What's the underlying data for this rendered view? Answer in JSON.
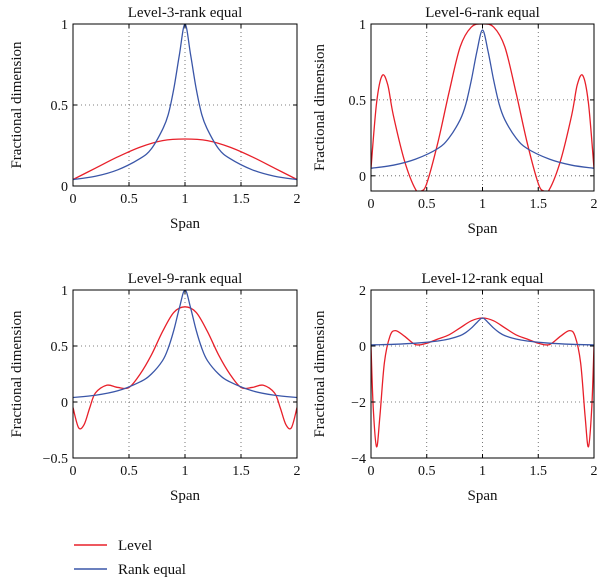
{
  "colors": {
    "level": "#e8202a",
    "rank": "#3a56a8"
  },
  "legend": [
    {
      "name": "Level",
      "color": "#e8202a"
    },
    {
      "name": "Rank equal",
      "color": "#3a56a8"
    }
  ],
  "chart_data": [
    {
      "type": "line",
      "title": "Level-3-rank equal",
      "xlabel": "Span",
      "ylabel": "Fractional dimension",
      "xlim": [
        0,
        2
      ],
      "ylim": [
        0,
        1
      ],
      "xticks": [
        "0",
        "0.5",
        "1",
        "1.5",
        "2"
      ],
      "xtick_values": [
        0,
        0.5,
        1,
        1.5,
        2
      ],
      "yticks": [
        "0",
        "0.5",
        "1"
      ],
      "ytick_values": [
        0,
        0.5,
        1
      ],
      "grid": true,
      "series": [
        {
          "name": "Level",
          "color": "#e8202a",
          "x": [
            0,
            0.2,
            0.4,
            0.6,
            0.8,
            1.0,
            1.2,
            1.4,
            1.6,
            1.8,
            2.0
          ],
          "y": [
            0.04,
            0.11,
            0.18,
            0.24,
            0.28,
            0.29,
            0.28,
            0.24,
            0.18,
            0.11,
            0.04
          ]
        },
        {
          "name": "Rank equal",
          "color": "#3a56a8",
          "x": [
            0,
            0.2,
            0.4,
            0.6,
            0.7,
            0.8,
            0.85,
            0.9,
            0.95,
            1.0,
            1.05,
            1.1,
            1.15,
            1.2,
            1.3,
            1.4,
            1.6,
            1.8,
            2.0
          ],
          "y": [
            0.04,
            0.06,
            0.1,
            0.17,
            0.23,
            0.35,
            0.44,
            0.6,
            0.81,
            1.0,
            0.81,
            0.6,
            0.44,
            0.35,
            0.23,
            0.17,
            0.1,
            0.06,
            0.04
          ]
        }
      ]
    },
    {
      "type": "line",
      "title": "Level-6-rank equal",
      "xlabel": "Span",
      "ylabel": "Fractional dimension",
      "xlim": [
        0,
        2
      ],
      "ylim": [
        -0.1,
        1
      ],
      "xticks": [
        "0",
        "0.5",
        "1",
        "1.5",
        "2"
      ],
      "xtick_values": [
        0,
        0.5,
        1,
        1.5,
        2
      ],
      "yticks": [
        "0",
        "0.5",
        "1"
      ],
      "ytick_values": [
        0,
        0.5,
        1
      ],
      "grid": true,
      "series": [
        {
          "name": "Level",
          "color": "#e8202a",
          "x": [
            0,
            0.05,
            0.1,
            0.15,
            0.2,
            0.3,
            0.4,
            0.45,
            0.5,
            0.6,
            0.7,
            0.8,
            0.9,
            1.0,
            1.1,
            1.2,
            1.3,
            1.4,
            1.5,
            1.55,
            1.6,
            1.7,
            1.8,
            1.85,
            1.9,
            1.95,
            2.0
          ],
          "y": [
            0.05,
            0.48,
            0.66,
            0.6,
            0.4,
            0.1,
            -0.09,
            -0.1,
            -0.05,
            0.22,
            0.55,
            0.85,
            0.98,
            1.0,
            0.98,
            0.85,
            0.55,
            0.22,
            -0.05,
            -0.1,
            -0.09,
            0.1,
            0.4,
            0.6,
            0.66,
            0.48,
            0.05
          ]
        },
        {
          "name": "Rank equal",
          "color": "#3a56a8",
          "x": [
            0,
            0.2,
            0.4,
            0.6,
            0.7,
            0.8,
            0.85,
            0.9,
            0.95,
            1.0,
            1.05,
            1.1,
            1.15,
            1.2,
            1.3,
            1.4,
            1.6,
            1.8,
            2.0
          ],
          "y": [
            0.05,
            0.07,
            0.11,
            0.18,
            0.25,
            0.37,
            0.47,
            0.63,
            0.82,
            0.96,
            0.82,
            0.63,
            0.47,
            0.37,
            0.25,
            0.18,
            0.11,
            0.07,
            0.05
          ]
        }
      ]
    },
    {
      "type": "line",
      "title": "Level-9-rank equal",
      "xlabel": "Span",
      "ylabel": "Fractional dimension",
      "xlim": [
        0,
        2
      ],
      "ylim": [
        -0.5,
        1
      ],
      "xticks": [
        "0",
        "0.5",
        "1",
        "1.5",
        "2"
      ],
      "xtick_values": [
        0,
        0.5,
        1,
        1.5,
        2
      ],
      "yticks": [
        "−0.5",
        "0",
        "0.5",
        "1"
      ],
      "ytick_values": [
        -0.5,
        0,
        0.5,
        1
      ],
      "grid": true,
      "series": [
        {
          "name": "Level",
          "color": "#e8202a",
          "x": [
            0,
            0.05,
            0.1,
            0.15,
            0.2,
            0.3,
            0.4,
            0.5,
            0.6,
            0.7,
            0.8,
            0.9,
            1.0,
            1.1,
            1.2,
            1.3,
            1.4,
            1.5,
            1.6,
            1.7,
            1.8,
            1.85,
            1.9,
            1.95,
            2.0
          ],
          "y": [
            -0.05,
            -0.23,
            -0.2,
            -0.05,
            0.08,
            0.15,
            0.13,
            0.13,
            0.25,
            0.42,
            0.63,
            0.8,
            0.85,
            0.8,
            0.63,
            0.42,
            0.25,
            0.13,
            0.13,
            0.15,
            0.08,
            -0.05,
            -0.2,
            -0.23,
            -0.05
          ]
        },
        {
          "name": "Rank equal",
          "color": "#3a56a8",
          "x": [
            0,
            0.2,
            0.4,
            0.6,
            0.7,
            0.8,
            0.85,
            0.9,
            0.95,
            1.0,
            1.05,
            1.1,
            1.15,
            1.2,
            1.3,
            1.4,
            1.6,
            1.8,
            2.0
          ],
          "y": [
            0.04,
            0.06,
            0.1,
            0.18,
            0.25,
            0.37,
            0.48,
            0.64,
            0.84,
            1.0,
            0.84,
            0.64,
            0.48,
            0.37,
            0.25,
            0.18,
            0.1,
            0.06,
            0.04
          ]
        }
      ]
    },
    {
      "type": "line",
      "title": "Level-12-rank equal",
      "xlabel": "Span",
      "ylabel": "Fractional dimension",
      "xlim": [
        0,
        2
      ],
      "ylim": [
        -4,
        2
      ],
      "xticks": [
        "0",
        "0.5",
        "1",
        "1.5",
        "2"
      ],
      "xtick_values": [
        0,
        0.5,
        1,
        1.5,
        2
      ],
      "yticks": [
        "−4",
        "−2",
        "0",
        "2"
      ],
      "ytick_values": [
        -4,
        -2,
        0,
        2
      ],
      "grid": true,
      "series": [
        {
          "name": "Level",
          "color": "#e8202a",
          "x": [
            0,
            0.02,
            0.05,
            0.08,
            0.12,
            0.17,
            0.22,
            0.3,
            0.4,
            0.5,
            0.6,
            0.7,
            0.8,
            0.9,
            1.0,
            1.1,
            1.2,
            1.3,
            1.4,
            1.5,
            1.6,
            1.7,
            1.78,
            1.83,
            1.88,
            1.92,
            1.95,
            1.98,
            2.0
          ],
          "y": [
            0.0,
            -2.2,
            -3.6,
            -2.5,
            -0.6,
            0.35,
            0.55,
            0.35,
            0.05,
            0.1,
            0.25,
            0.4,
            0.65,
            0.9,
            1.0,
            0.9,
            0.65,
            0.4,
            0.25,
            0.1,
            0.05,
            0.35,
            0.55,
            0.35,
            -0.6,
            -2.5,
            -3.6,
            -2.2,
            0.0
          ]
        },
        {
          "name": "Rank equal",
          "color": "#3a56a8",
          "x": [
            0,
            0.2,
            0.4,
            0.6,
            0.7,
            0.8,
            0.85,
            0.9,
            0.95,
            1.0,
            1.05,
            1.1,
            1.15,
            1.2,
            1.3,
            1.4,
            1.6,
            1.8,
            2.0
          ],
          "y": [
            0.04,
            0.06,
            0.1,
            0.18,
            0.25,
            0.37,
            0.48,
            0.64,
            0.84,
            1.0,
            0.84,
            0.64,
            0.48,
            0.37,
            0.25,
            0.18,
            0.1,
            0.06,
            0.04
          ]
        }
      ]
    }
  ]
}
